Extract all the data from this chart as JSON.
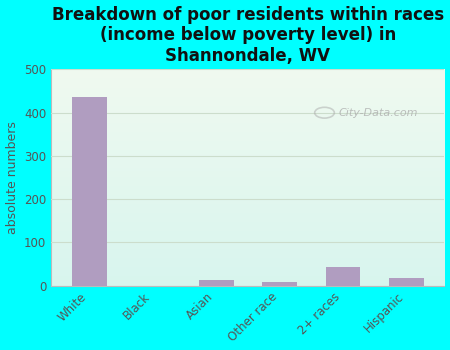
{
  "title": "Breakdown of poor residents within races\n(income below poverty level) in\nShannondale, WV",
  "categories": [
    "White",
    "Black",
    "Asian",
    "Other race",
    "2+ races",
    "Hispanic"
  ],
  "values": [
    437,
    0,
    12,
    9,
    42,
    18
  ],
  "bar_color": "#b09dc0",
  "ylabel": "absolute numbers",
  "ylim": [
    0,
    500
  ],
  "yticks": [
    0,
    100,
    200,
    300,
    400,
    500
  ],
  "background_color": "#00ffff",
  "plot_bg_topleft": "#f0faf0",
  "plot_bg_bottomright": "#d8f5ee",
  "grid_color": "#ccddcc",
  "watermark": "City-Data.com",
  "title_fontsize": 12,
  "tick_fontsize": 8.5,
  "ylabel_fontsize": 9,
  "spine_color": "#bbbbbb"
}
